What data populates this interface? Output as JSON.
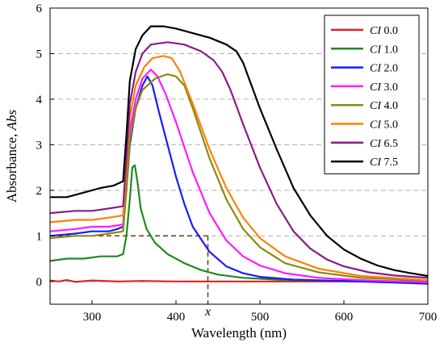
{
  "chart_data": {
    "type": "line",
    "xlabel": "Wavelength (nm)",
    "ylabel_prefix": "Absorbance, ",
    "ylabel_italic": "Abs",
    "xlim": [
      250,
      700
    ],
    "ylim": [
      -0.5,
      6
    ],
    "xticks": [
      300,
      400,
      500,
      600,
      700
    ],
    "yticks": [
      0,
      1,
      2,
      3,
      4,
      5,
      6
    ],
    "grid": "horizontal-dashed",
    "legend_position": "top-right",
    "legend_prefix": "CI",
    "annotation": {
      "label": "x",
      "x": 438,
      "y": 1.0,
      "color": "#6b3a10"
    },
    "series": [
      {
        "name": "0.0",
        "color": "#e02020",
        "points": [
          [
            250,
            0.02
          ],
          [
            260,
            0.0
          ],
          [
            270,
            0.03
          ],
          [
            280,
            -0.01
          ],
          [
            300,
            0.02
          ],
          [
            330,
            0.0
          ],
          [
            360,
            0.01
          ],
          [
            400,
            0.0
          ],
          [
            450,
            0.0
          ],
          [
            500,
            0.0
          ],
          [
            550,
            0.0
          ],
          [
            600,
            0.0
          ],
          [
            650,
            0.0
          ],
          [
            700,
            0.0
          ]
        ]
      },
      {
        "name": "1.0",
        "color": "#1f8a1f",
        "points": [
          [
            250,
            0.45
          ],
          [
            270,
            0.5
          ],
          [
            290,
            0.5
          ],
          [
            310,
            0.55
          ],
          [
            330,
            0.55
          ],
          [
            337,
            0.6
          ],
          [
            341,
            1.0
          ],
          [
            345,
            1.8
          ],
          [
            348,
            2.5
          ],
          [
            351,
            2.55
          ],
          [
            354,
            2.2
          ],
          [
            358,
            1.6
          ],
          [
            365,
            1.15
          ],
          [
            375,
            0.85
          ],
          [
            390,
            0.6
          ],
          [
            410,
            0.4
          ],
          [
            430,
            0.25
          ],
          [
            450,
            0.15
          ],
          [
            480,
            0.08
          ],
          [
            520,
            0.04
          ],
          [
            560,
            0.02
          ],
          [
            620,
            0.01
          ],
          [
            700,
            0.0
          ]
        ]
      },
      {
        "name": "2.0",
        "color": "#1a1aff",
        "points": [
          [
            250,
            1.0
          ],
          [
            280,
            1.05
          ],
          [
            300,
            1.1
          ],
          [
            320,
            1.1
          ],
          [
            330,
            1.15
          ],
          [
            337,
            1.2
          ],
          [
            341,
            2.0
          ],
          [
            345,
            3.0
          ],
          [
            352,
            3.8
          ],
          [
            360,
            4.3
          ],
          [
            366,
            4.5
          ],
          [
            372,
            4.3
          ],
          [
            380,
            3.7
          ],
          [
            390,
            3.0
          ],
          [
            400,
            2.3
          ],
          [
            410,
            1.7
          ],
          [
            420,
            1.2
          ],
          [
            440,
            0.65
          ],
          [
            460,
            0.33
          ],
          [
            480,
            0.18
          ],
          [
            500,
            0.1
          ],
          [
            540,
            0.04
          ],
          [
            600,
            0.01
          ],
          [
            700,
            -0.05
          ]
        ]
      },
      {
        "name": "3.0",
        "color": "#ff1aff",
        "points": [
          [
            250,
            1.1
          ],
          [
            280,
            1.15
          ],
          [
            300,
            1.2
          ],
          [
            320,
            1.2
          ],
          [
            337,
            1.25
          ],
          [
            341,
            2.2
          ],
          [
            345,
            3.3
          ],
          [
            352,
            4.0
          ],
          [
            360,
            4.45
          ],
          [
            370,
            4.65
          ],
          [
            378,
            4.5
          ],
          [
            388,
            4.1
          ],
          [
            400,
            3.5
          ],
          [
            420,
            2.4
          ],
          [
            440,
            1.5
          ],
          [
            460,
            0.9
          ],
          [
            480,
            0.55
          ],
          [
            500,
            0.35
          ],
          [
            530,
            0.18
          ],
          [
            570,
            0.08
          ],
          [
            620,
            0.03
          ],
          [
            700,
            -0.02
          ]
        ]
      },
      {
        "name": "4.0",
        "color": "#8a8a10",
        "points": [
          [
            250,
            0.95
          ],
          [
            280,
            1.0
          ],
          [
            300,
            1.0
          ],
          [
            320,
            1.05
          ],
          [
            337,
            1.1
          ],
          [
            341,
            2.0
          ],
          [
            345,
            3.1
          ],
          [
            352,
            3.8
          ],
          [
            360,
            4.2
          ],
          [
            375,
            4.45
          ],
          [
            390,
            4.55
          ],
          [
            400,
            4.5
          ],
          [
            410,
            4.3
          ],
          [
            420,
            3.8
          ],
          [
            440,
            2.7
          ],
          [
            460,
            1.8
          ],
          [
            480,
            1.15
          ],
          [
            500,
            0.75
          ],
          [
            530,
            0.4
          ],
          [
            570,
            0.2
          ],
          [
            620,
            0.08
          ],
          [
            700,
            0.02
          ]
        ]
      },
      {
        "name": "5.0",
        "color": "#ff8000",
        "points": [
          [
            250,
            1.3
          ],
          [
            280,
            1.35
          ],
          [
            300,
            1.35
          ],
          [
            320,
            1.4
          ],
          [
            337,
            1.45
          ],
          [
            341,
            2.5
          ],
          [
            345,
            3.6
          ],
          [
            352,
            4.3
          ],
          [
            362,
            4.7
          ],
          [
            372,
            4.9
          ],
          [
            385,
            4.95
          ],
          [
            395,
            4.9
          ],
          [
            405,
            4.6
          ],
          [
            420,
            3.9
          ],
          [
            440,
            2.9
          ],
          [
            460,
            2.05
          ],
          [
            480,
            1.4
          ],
          [
            500,
            0.95
          ],
          [
            530,
            0.55
          ],
          [
            570,
            0.28
          ],
          [
            620,
            0.12
          ],
          [
            700,
            0.03
          ]
        ]
      },
      {
        "name": "6.5",
        "color": "#8b1a8b",
        "points": [
          [
            250,
            1.5
          ],
          [
            280,
            1.55
          ],
          [
            300,
            1.55
          ],
          [
            320,
            1.6
          ],
          [
            337,
            1.65
          ],
          [
            341,
            2.7
          ],
          [
            345,
            3.9
          ],
          [
            352,
            4.6
          ],
          [
            360,
            5.0
          ],
          [
            370,
            5.2
          ],
          [
            390,
            5.25
          ],
          [
            410,
            5.2
          ],
          [
            430,
            5.05
          ],
          [
            445,
            4.85
          ],
          [
            455,
            4.6
          ],
          [
            465,
            4.2
          ],
          [
            480,
            3.45
          ],
          [
            500,
            2.5
          ],
          [
            520,
            1.7
          ],
          [
            540,
            1.1
          ],
          [
            560,
            0.72
          ],
          [
            580,
            0.48
          ],
          [
            600,
            0.33
          ],
          [
            630,
            0.2
          ],
          [
            660,
            0.13
          ],
          [
            700,
            0.08
          ]
        ]
      },
      {
        "name": "7.5",
        "color": "#000000",
        "points": [
          [
            250,
            1.85
          ],
          [
            270,
            1.85
          ],
          [
            290,
            1.95
          ],
          [
            310,
            2.05
          ],
          [
            325,
            2.1
          ],
          [
            337,
            2.2
          ],
          [
            341,
            3.2
          ],
          [
            345,
            4.4
          ],
          [
            352,
            5.1
          ],
          [
            360,
            5.4
          ],
          [
            370,
            5.6
          ],
          [
            385,
            5.6
          ],
          [
            400,
            5.55
          ],
          [
            420,
            5.45
          ],
          [
            440,
            5.35
          ],
          [
            460,
            5.2
          ],
          [
            472,
            5.05
          ],
          [
            480,
            4.8
          ],
          [
            490,
            4.3
          ],
          [
            500,
            3.8
          ],
          [
            520,
            2.9
          ],
          [
            540,
            2.05
          ],
          [
            560,
            1.45
          ],
          [
            580,
            1.0
          ],
          [
            600,
            0.7
          ],
          [
            620,
            0.5
          ],
          [
            640,
            0.35
          ],
          [
            660,
            0.25
          ],
          [
            680,
            0.18
          ],
          [
            700,
            0.12
          ]
        ]
      }
    ]
  }
}
